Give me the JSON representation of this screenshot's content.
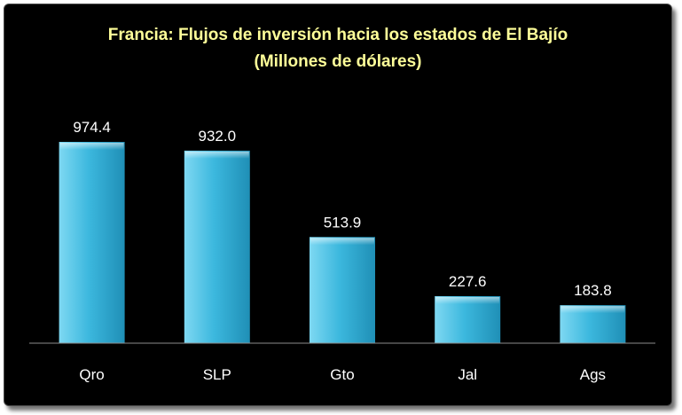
{
  "chart_data": {
    "type": "bar",
    "title": "Francia: Flujos de inversión hacia los estados de El Bajío",
    "subtitle": "(Millones de dólares)",
    "categories": [
      "Qro",
      "SLP",
      "Gto",
      "Jal",
      "Ags"
    ],
    "values": [
      974.4,
      932.0,
      513.9,
      227.6,
      183.8
    ],
    "value_labels": [
      "974.4",
      "932.0",
      "513.9",
      "227.6",
      "183.8"
    ],
    "xlabel": "",
    "ylabel": "",
    "ylim": [
      0,
      1100
    ],
    "grid": false,
    "legend": "none",
    "colors": {
      "background": "#000000",
      "bar_top": "#7ed8f2",
      "bar_mid": "#3cb8de",
      "bar_bottom": "#1f8fb6",
      "title": "#ffff99",
      "labels": "#ffffff",
      "axis": "#8c8c8c"
    }
  }
}
